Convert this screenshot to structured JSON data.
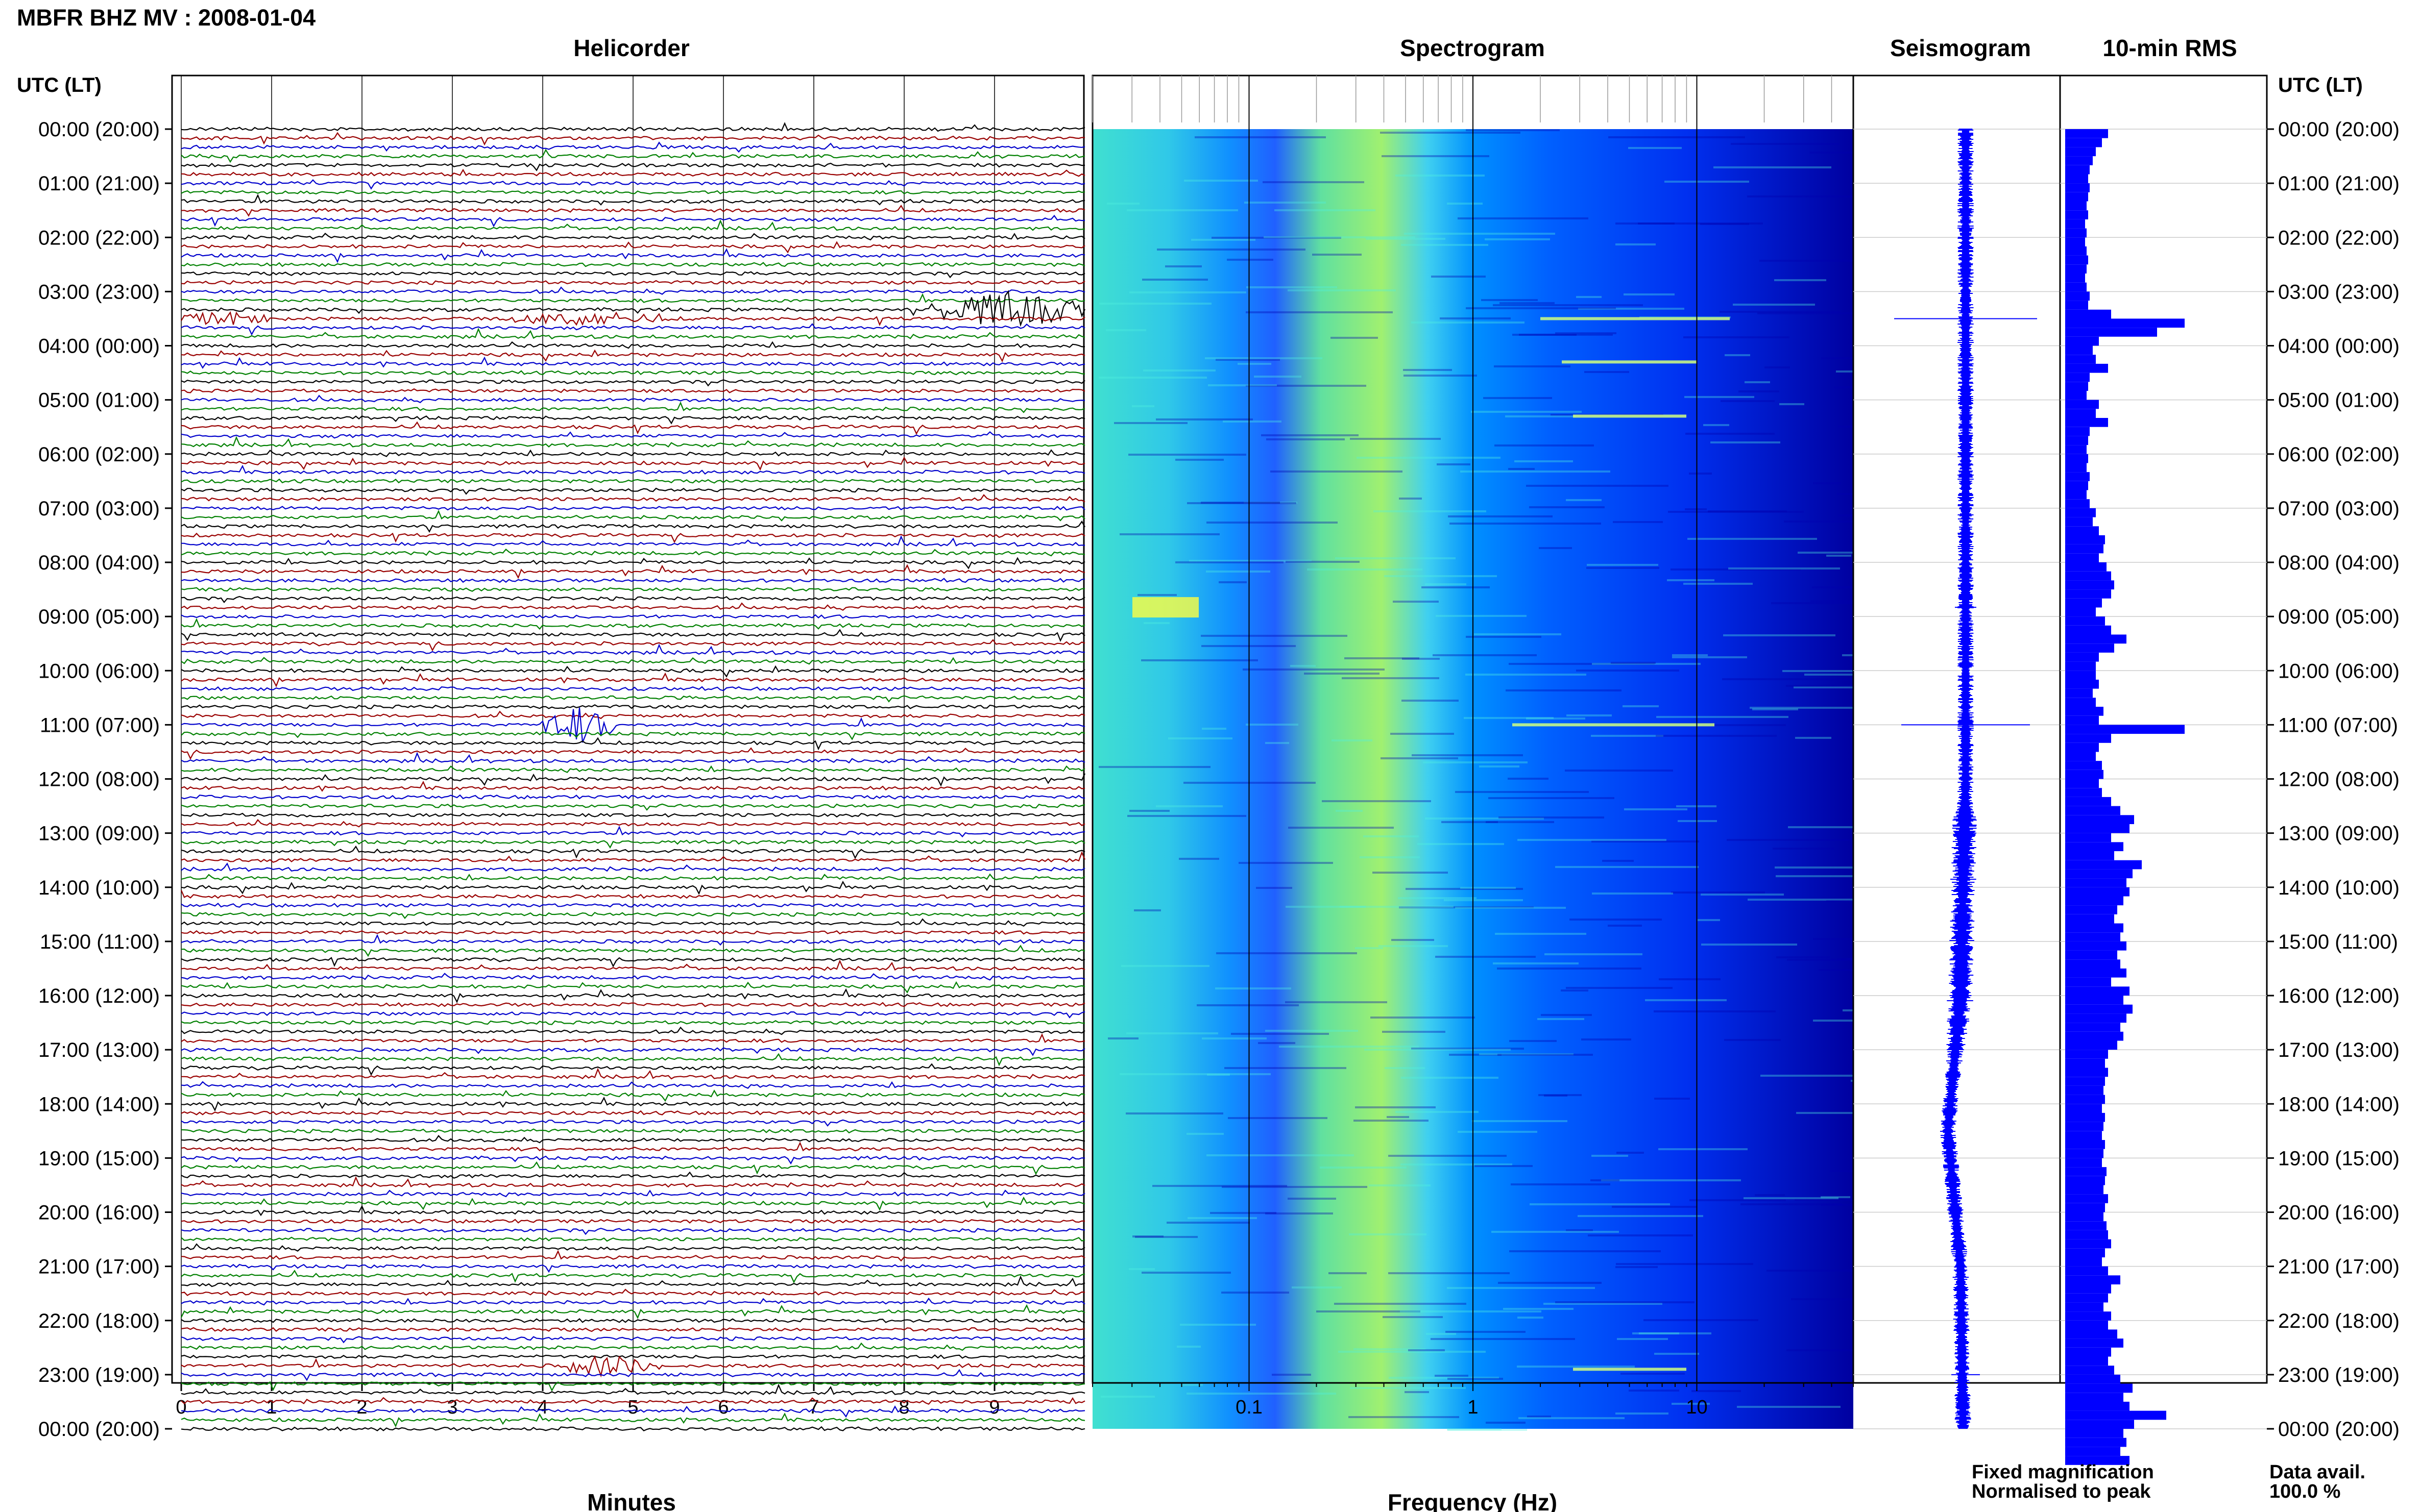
{
  "title": "MBFR BHZ MV : 2008-01-04",
  "panels": {
    "helicorder": "Helicorder",
    "spectrogram": "Spectrogram",
    "seismogram": "Seismogram",
    "rms": "10-min RMS"
  },
  "axis": {
    "time_header": "UTC (LT)",
    "minutes_label": "Minutes",
    "frequency_label": "Frequency (Hz)"
  },
  "legend": {
    "fixed": "Fixed magnification",
    "normalised": "Normalised to peak",
    "fixed_color": "#0000ff",
    "normalised_color": "#ff0000"
  },
  "data_avail": {
    "label": "Data avail.",
    "value": "100.0 %"
  },
  "colors": {
    "trace_cycle": [
      "#000000",
      "#990000",
      "#0000cc",
      "#008000"
    ],
    "rms_fill": "#0000ff",
    "spectrogram_colormap": [
      "#000080",
      "#0000ff",
      "#0080ff",
      "#00c0ff",
      "#40e0d0",
      "#80ff80",
      "#ffff00"
    ]
  },
  "chart_data": [
    {
      "type": "heatmap",
      "panel": "helicorder",
      "xlabel": "Minutes",
      "x_ticks": [
        0,
        1,
        2,
        3,
        4,
        5,
        6,
        7,
        8,
        9
      ],
      "xlim": [
        0,
        10
      ],
      "lines_per_hour": 6,
      "time_ticks": [
        "00:00 (20:00)",
        "01:00 (21:00)",
        "02:00 (22:00)",
        "03:00 (23:00)",
        "04:00 (00:00)",
        "05:00 (01:00)",
        "06:00 (02:00)",
        "07:00 (03:00)",
        "08:00 (04:00)",
        "09:00 (05:00)",
        "10:00 (06:00)",
        "11:00 (07:00)",
        "12:00 (08:00)",
        "13:00 (09:00)",
        "14:00 (10:00)",
        "15:00 (11:00)",
        "16:00 (12:00)",
        "17:00 (13:00)",
        "18:00 (14:00)",
        "19:00 (15:00)",
        "20:00 (16:00)",
        "21:00 (17:00)",
        "22:00 (18:00)",
        "23:00 (19:00)",
        "00:00 (20:00)"
      ],
      "events": [
        {
          "hour": 3.33,
          "minute_start": 8.3,
          "minute_end": 10,
          "amplitude": 1.0
        },
        {
          "hour": 3.5,
          "minute_start": 0,
          "minute_end": 1.0,
          "amplitude": 0.4
        },
        {
          "hour": 3.5,
          "minute_start": 3.6,
          "minute_end": 5.4,
          "amplitude": 0.4
        },
        {
          "hour": 11.0,
          "minute_start": 4.0,
          "minute_end": 4.8,
          "amplitude": 1.0
        },
        {
          "hour": 22.83,
          "minute_start": 4.2,
          "minute_end": 5.2,
          "amplitude": 0.6
        }
      ]
    },
    {
      "type": "heatmap",
      "panel": "spectrogram",
      "xlabel": "Frequency (Hz)",
      "x_scale": "log",
      "x_ticks": [
        0.1,
        1,
        10
      ],
      "x_tick_labels": [
        "0.1",
        "1",
        "10"
      ],
      "xlim": [
        0.02,
        50
      ]
    },
    {
      "type": "line",
      "panel": "seismogram",
      "spikes": [
        {
          "hour": 3.5,
          "amplitude": 1.0
        },
        {
          "hour": 11.0,
          "amplitude": 0.9
        },
        {
          "hour": 8.83,
          "amplitude": 0.15
        },
        {
          "hour": 13.0,
          "amplitude": 0.15
        },
        {
          "hour": 23.0,
          "amplitude": 0.2
        }
      ],
      "drift": [
        {
          "hour": 0,
          "offset": 0
        },
        {
          "hour": 12,
          "offset": 0
        },
        {
          "hour": 16,
          "offset": -0.1
        },
        {
          "hour": 18.5,
          "offset": -0.35
        },
        {
          "hour": 21,
          "offset": -0.1
        },
        {
          "hour": 24,
          "offset": -0.05
        }
      ]
    },
    {
      "type": "bar",
      "panel": "rms",
      "orientation": "horizontal",
      "bins_per_hour": 6,
      "values": [
        0.28,
        0.24,
        0.2,
        0.18,
        0.16,
        0.15,
        0.16,
        0.15,
        0.14,
        0.15,
        0.13,
        0.14,
        0.13,
        0.14,
        0.15,
        0.14,
        0.13,
        0.14,
        0.16,
        0.15,
        0.3,
        0.78,
        0.6,
        0.22,
        0.18,
        0.2,
        0.28,
        0.16,
        0.15,
        0.14,
        0.22,
        0.2,
        0.28,
        0.16,
        0.15,
        0.14,
        0.15,
        0.14,
        0.16,
        0.15,
        0.14,
        0.16,
        0.2,
        0.18,
        0.22,
        0.26,
        0.25,
        0.22,
        0.27,
        0.3,
        0.32,
        0.3,
        0.24,
        0.2,
        0.26,
        0.3,
        0.4,
        0.32,
        0.22,
        0.2,
        0.2,
        0.22,
        0.18,
        0.2,
        0.25,
        0.22,
        0.78,
        0.3,
        0.22,
        0.2,
        0.24,
        0.25,
        0.22,
        0.24,
        0.3,
        0.36,
        0.45,
        0.42,
        0.3,
        0.38,
        0.32,
        0.5,
        0.44,
        0.4,
        0.42,
        0.38,
        0.34,
        0.32,
        0.38,
        0.36,
        0.4,
        0.34,
        0.36,
        0.4,
        0.3,
        0.42,
        0.38,
        0.44,
        0.4,
        0.36,
        0.38,
        0.34,
        0.28,
        0.26,
        0.28,
        0.26,
        0.25,
        0.26,
        0.24,
        0.26,
        0.25,
        0.24,
        0.26,
        0.25,
        0.24,
        0.27,
        0.26,
        0.25,
        0.28,
        0.26,
        0.25,
        0.27,
        0.28,
        0.3,
        0.26,
        0.24,
        0.28,
        0.36,
        0.3,
        0.28,
        0.25,
        0.3,
        0.28,
        0.34,
        0.38,
        0.3,
        0.28,
        0.32,
        0.36,
        0.44,
        0.38,
        0.42,
        0.66,
        0.45,
        0.38,
        0.4,
        0.36,
        0.42
      ]
    }
  ]
}
